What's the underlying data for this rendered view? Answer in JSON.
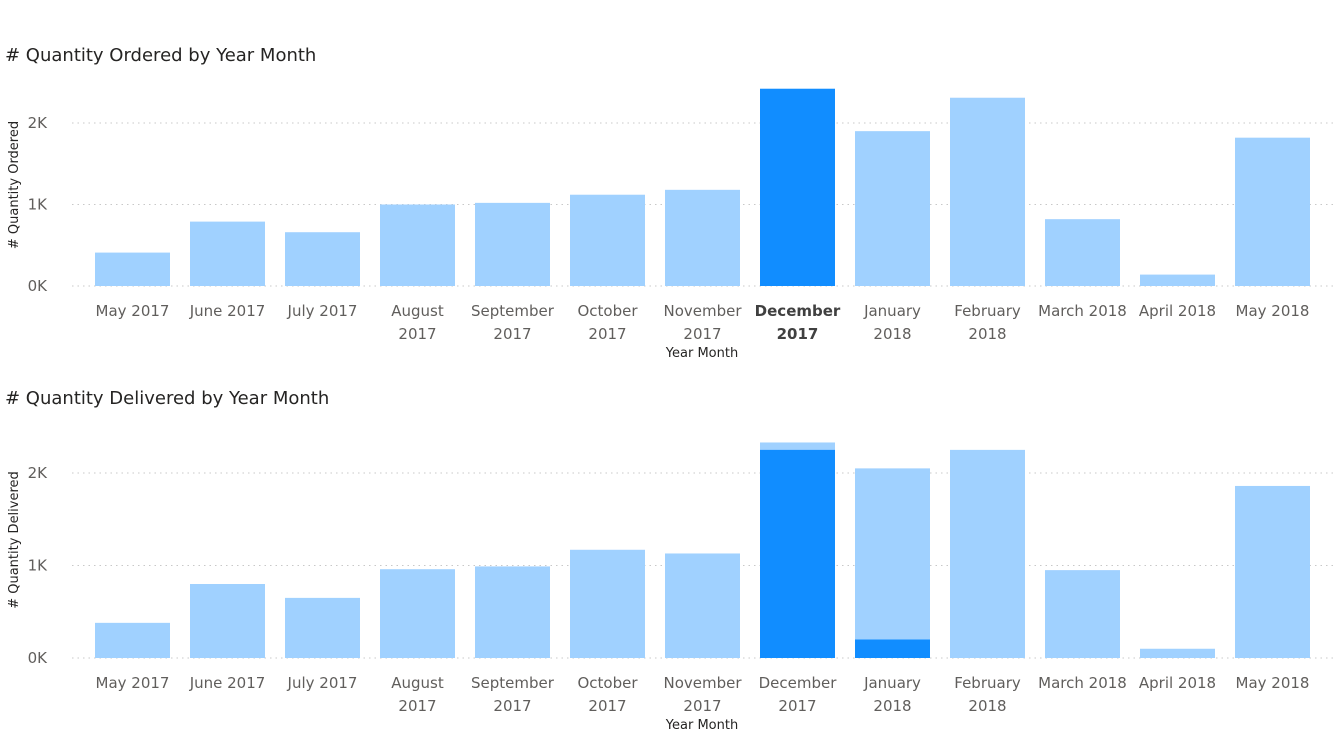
{
  "chart_data": [
    {
      "type": "bar",
      "title": "# Quantity Ordered by Year Month",
      "xlabel": "Year Month",
      "ylabel": "# Quantity Ordered",
      "categories": [
        "May 2017",
        "June 2017",
        "July 2017",
        "August 2017",
        "September 2017",
        "October 2017",
        "November 2017",
        "December 2017",
        "January 2018",
        "February 2018",
        "March 2018",
        "April 2018",
        "May 2018"
      ],
      "category_lines": [
        [
          "May 2017"
        ],
        [
          "June 2017"
        ],
        [
          "July 2017"
        ],
        [
          "August",
          "2017"
        ],
        [
          "September",
          "2017"
        ],
        [
          "October",
          "2017"
        ],
        [
          "November",
          "2017"
        ],
        [
          "December",
          "2017"
        ],
        [
          "January",
          "2018"
        ],
        [
          "February",
          "2018"
        ],
        [
          "March 2018"
        ],
        [
          "April 2018"
        ],
        [
          "May 2018"
        ]
      ],
      "series": [
        {
          "values": [
            410,
            790,
            660,
            1000,
            1020,
            1120,
            1180,
            2420,
            1900,
            2310,
            820,
            140,
            1820
          ]
        }
      ],
      "highlight": [
        null,
        null,
        null,
        null,
        null,
        null,
        null,
        2420,
        null,
        null,
        null,
        null,
        null
      ],
      "selected_category": "December 2017",
      "yticks": [
        0,
        1000,
        2000
      ],
      "ytick_labels": [
        "0K",
        "1K",
        "2K"
      ],
      "ylim": [
        0,
        2500
      ],
      "grid": true,
      "colors": {
        "bar": "#a0d1ff",
        "highlight": "#118dff",
        "grid": "#c8c8c8"
      }
    },
    {
      "type": "bar",
      "title": "# Quantity Delivered by Year Month",
      "xlabel": "Year Month",
      "ylabel": "# Quantity Delivered",
      "categories": [
        "May 2017",
        "June 2017",
        "July 2017",
        "August 2017",
        "September 2017",
        "October 2017",
        "November 2017",
        "December 2017",
        "January 2018",
        "February 2018",
        "March 2018",
        "April 2018",
        "May 2018"
      ],
      "category_lines": [
        [
          "May 2017"
        ],
        [
          "June 2017"
        ],
        [
          "July 2017"
        ],
        [
          "August",
          "2017"
        ],
        [
          "September",
          "2017"
        ],
        [
          "October",
          "2017"
        ],
        [
          "November",
          "2017"
        ],
        [
          "December",
          "2017"
        ],
        [
          "January",
          "2018"
        ],
        [
          "February",
          "2018"
        ],
        [
          "March 2018"
        ],
        [
          "April 2018"
        ],
        [
          "May 2018"
        ]
      ],
      "series": [
        {
          "values": [
            380,
            800,
            650,
            960,
            990,
            1170,
            1130,
            2330,
            2050,
            2250,
            950,
            100,
            1860
          ]
        }
      ],
      "highlight": [
        null,
        null,
        null,
        null,
        null,
        null,
        null,
        2250,
        200,
        null,
        null,
        null,
        null
      ],
      "selected_category": null,
      "yticks": [
        0,
        1000,
        2000
      ],
      "ytick_labels": [
        "0K",
        "1K",
        "2K"
      ],
      "ylim": [
        0,
        2500
      ],
      "grid": true,
      "colors": {
        "bar": "#a0d1ff",
        "highlight": "#118dff",
        "grid": "#c8c8c8"
      }
    }
  ]
}
